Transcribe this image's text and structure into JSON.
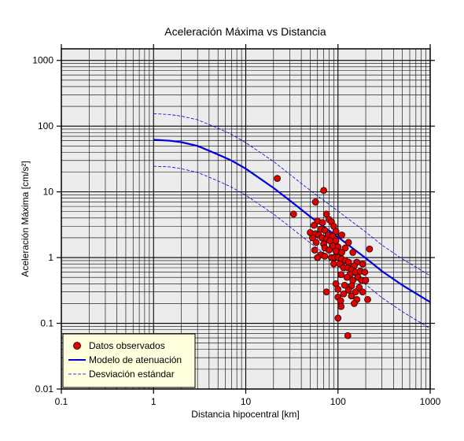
{
  "chart_data": {
    "type": "scatter",
    "title": "Aceleración Máxima vs Distancia",
    "xlabel": "Distancia hipocentral [km]",
    "ylabel": "Aceleración Máxima [cm/s²]",
    "xscale": "log",
    "yscale": "log",
    "xlim": [
      0.1,
      1000
    ],
    "ylim": [
      0.01,
      1500
    ],
    "grid": true,
    "background": "#ececec",
    "x_tick_labels": [
      "0.1",
      "1",
      "10",
      "100",
      "1000"
    ],
    "y_tick_labels": [
      "0.01",
      "0.1",
      "1",
      "10",
      "100",
      "1000"
    ],
    "legend_position": "bottom-left",
    "legend_background": "#ffffdd",
    "series": [
      {
        "name": "Datos observados",
        "kind": "scatter",
        "color": "#e00000",
        "points": [
          [
            22,
            16
          ],
          [
            33,
            4.6
          ],
          [
            70,
            10.5
          ],
          [
            57,
            7.0
          ],
          [
            75,
            4.6
          ],
          [
            80,
            3.8
          ],
          [
            60,
            3.6
          ],
          [
            68,
            3.4
          ],
          [
            85,
            3.5
          ],
          [
            55,
            3.1
          ],
          [
            90,
            3.0
          ],
          [
            65,
            2.7
          ],
          [
            72,
            2.6
          ],
          [
            95,
            2.5
          ],
          [
            50,
            2.4
          ],
          [
            57,
            2.3
          ],
          [
            62,
            2.2
          ],
          [
            78,
            2.2
          ],
          [
            88,
            2.1
          ],
          [
            110,
            2.2
          ],
          [
            53,
            2.0
          ],
          [
            67,
            2.0
          ],
          [
            75,
            1.9
          ],
          [
            82,
            1.8
          ],
          [
            95,
            1.8
          ],
          [
            58,
            1.7
          ],
          [
            70,
            1.6
          ],
          [
            88,
            1.5
          ],
          [
            100,
            1.45
          ],
          [
            72,
            1.4
          ],
          [
            120,
            1.4
          ],
          [
            130,
            1.7
          ],
          [
            56,
            1.3
          ],
          [
            80,
            1.3
          ],
          [
            95,
            1.25
          ],
          [
            110,
            1.2
          ],
          [
            145,
            1.2
          ],
          [
            220,
            1.35
          ],
          [
            65,
            1.1
          ],
          [
            72,
            1.05
          ],
          [
            85,
            1.0
          ],
          [
            92,
            1.0
          ],
          [
            100,
            1.0
          ],
          [
            60,
            1.0
          ],
          [
            110,
            0.95
          ],
          [
            120,
            0.9
          ],
          [
            130,
            0.85
          ],
          [
            160,
            0.85
          ],
          [
            90,
            0.8
          ],
          [
            105,
            0.8
          ],
          [
            150,
            0.75
          ],
          [
            185,
            0.8
          ],
          [
            115,
            0.7
          ],
          [
            128,
            0.7
          ],
          [
            140,
            0.65
          ],
          [
            155,
            0.6
          ],
          [
            175,
            0.62
          ],
          [
            195,
            0.6
          ],
          [
            108,
            0.55
          ],
          [
            135,
            0.55
          ],
          [
            165,
            0.5
          ],
          [
            125,
            0.5
          ],
          [
            145,
            0.45
          ],
          [
            180,
            0.45
          ],
          [
            200,
            0.45
          ],
          [
            95,
            0.4
          ],
          [
            118,
            0.38
          ],
          [
            140,
            0.37
          ],
          [
            170,
            0.35
          ],
          [
            100,
            0.33
          ],
          [
            130,
            0.32
          ],
          [
            155,
            0.3
          ],
          [
            185,
            0.3
          ],
          [
            75,
            0.3
          ],
          [
            115,
            0.28
          ],
          [
            140,
            0.26
          ],
          [
            160,
            0.23
          ],
          [
            210,
            0.23
          ],
          [
            100,
            0.25
          ],
          [
            107,
            0.22
          ],
          [
            150,
            0.2
          ],
          [
            108,
            0.18
          ],
          [
            100,
            0.12
          ],
          [
            128,
            0.065
          ]
        ]
      },
      {
        "name": "Modelo de atenuación",
        "kind": "line",
        "color": "#0000dd",
        "points": [
          [
            1,
            62
          ],
          [
            1.5,
            60
          ],
          [
            2,
            57
          ],
          [
            3,
            50
          ],
          [
            5,
            37
          ],
          [
            7,
            30
          ],
          [
            10,
            22.5
          ],
          [
            20,
            11.5
          ],
          [
            30,
            7.4
          ],
          [
            50,
            4.2
          ],
          [
            100,
            2.05
          ],
          [
            200,
            0.98
          ],
          [
            300,
            0.62
          ],
          [
            500,
            0.38
          ],
          [
            1000,
            0.21
          ]
        ]
      },
      {
        "name": "Desviación estándar",
        "kind": "line",
        "style": "dashed",
        "color": "#0000dd",
        "upper": [
          [
            1,
            155
          ],
          [
            1.5,
            150
          ],
          [
            2,
            142
          ],
          [
            3,
            125
          ],
          [
            5,
            93
          ],
          [
            7,
            75
          ],
          [
            10,
            56
          ],
          [
            20,
            29
          ],
          [
            30,
            18.5
          ],
          [
            50,
            10.5
          ],
          [
            100,
            5.1
          ],
          [
            200,
            2.45
          ],
          [
            300,
            1.55
          ],
          [
            500,
            0.95
          ],
          [
            1000,
            0.53
          ]
        ],
        "lower": [
          [
            1,
            24.5
          ],
          [
            1.5,
            24
          ],
          [
            2,
            22.5
          ],
          [
            3,
            19.8
          ],
          [
            5,
            14.7
          ],
          [
            7,
            11.8
          ],
          [
            10,
            8.9
          ],
          [
            20,
            4.6
          ],
          [
            30,
            2.95
          ],
          [
            50,
            1.67
          ],
          [
            100,
            0.81
          ],
          [
            200,
            0.39
          ],
          [
            300,
            0.245
          ],
          [
            500,
            0.15
          ],
          [
            1000,
            0.083
          ]
        ]
      }
    ]
  }
}
